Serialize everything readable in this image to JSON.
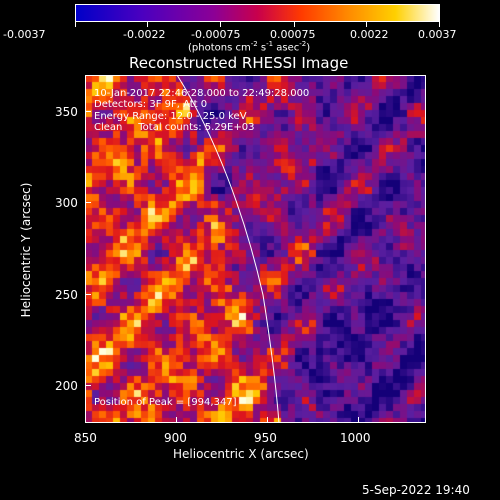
{
  "colorbar": {
    "ticks": [
      "-0.0037",
      "-0.0022",
      "-0.00075",
      "0.00075",
      "0.0022",
      "0.0037"
    ],
    "units_prefix": "(photons cm",
    "units_exp1": "-2",
    "units_mid": " s",
    "units_exp2": "-1",
    "units_mid2": " asec",
    "units_exp3": "-2",
    "units_suffix": ")"
  },
  "title": "Reconstructed RHESSI Image",
  "info": {
    "line1": "10-Jan-2017 22:46:28.000 to 22:49:28.000",
    "line2": "Detectors: 3F 9F, Att 0",
    "line3": "Energy Range: 12.0 - 25.0 keV",
    "line4": "Clean     Total counts: 5.29E+03",
    "peak": "Position of Peak = [994,347]"
  },
  "axes": {
    "x_title": "Heliocentric X (arcsec)",
    "y_title": "Heliocentric Y (arcsec)",
    "x_ticks": [
      "850",
      "900",
      "950",
      "1000"
    ],
    "y_ticks": [
      "350",
      "300",
      "250",
      "200"
    ]
  },
  "footer": "5-Sep-2022 19:40",
  "colors": {
    "background": "#000000",
    "limb": "#ffffff",
    "colorbar_stops": [
      "#0000c8",
      "#5a00b4",
      "#a0008c",
      "#e8003c",
      "#ff5000",
      "#ffa000",
      "#ffe000",
      "#ffffff"
    ]
  }
}
